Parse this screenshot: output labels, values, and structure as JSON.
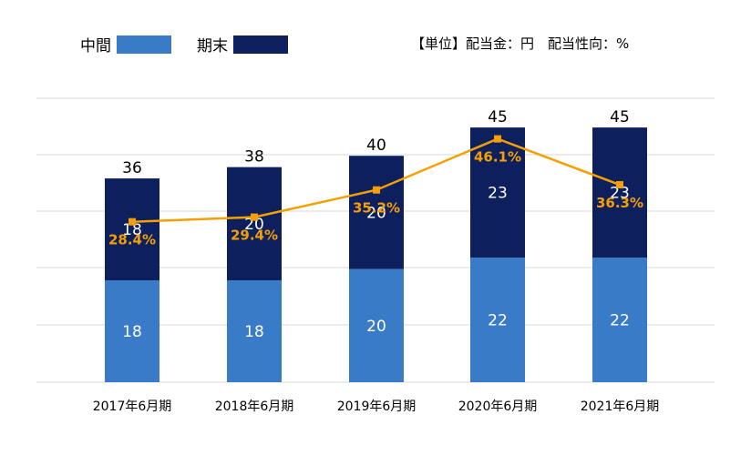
{
  "legend": {
    "interim_label": "中間",
    "yearend_label": "期末"
  },
  "unit_note": "【単位】配当金：円　配当性向：%",
  "colors": {
    "interim": "#3A7BC8",
    "yearend": "#0E1F5E",
    "payout_line": "#F5A000",
    "grid": "#D9D9D9",
    "total_text": "#000000",
    "bar_text": "#FFFFFF"
  },
  "chart_data": {
    "type": "bar",
    "stacked": true,
    "categories": [
      "2017年6月期",
      "2018年6月期",
      "2019年6月期",
      "2020年6月期",
      "2021年6月期"
    ],
    "series": [
      {
        "name": "中間",
        "values": [
          18,
          18,
          20,
          22,
          22
        ]
      },
      {
        "name": "期末",
        "values": [
          18,
          20,
          20,
          23,
          23
        ]
      }
    ],
    "totals": [
      "36",
      "38",
      "40",
      "45",
      "45"
    ],
    "payout_ratio": {
      "values": [
        28.4,
        29.4,
        35.2,
        46.1,
        36.3
      ],
      "labels": [
        "28.4%",
        "29.4%",
        "35.2%",
        "46.1%",
        "36.3%"
      ]
    },
    "ylim": [
      0,
      45
    ],
    "grid": true
  }
}
